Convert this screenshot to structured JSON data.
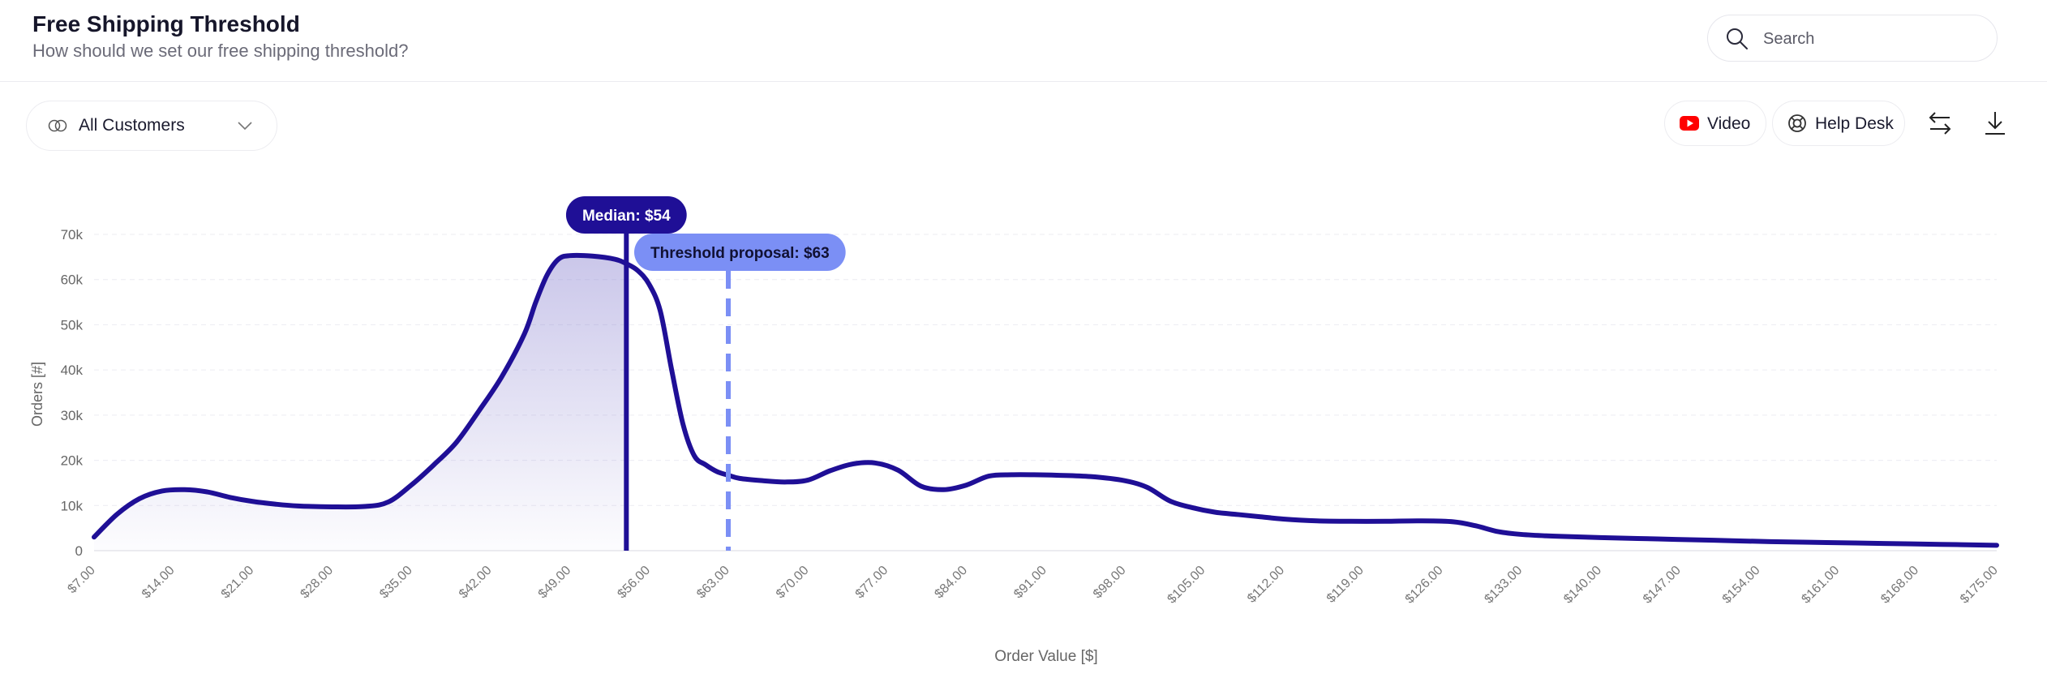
{
  "header": {
    "title": "Free Shipping Threshold",
    "subtitle": "How should we set our free shipping threshold?"
  },
  "search": {
    "placeholder": "Search",
    "icon": "search-icon"
  },
  "filter": {
    "selected": "All Customers",
    "icon": "segment-icon"
  },
  "toolbar": {
    "video_label": "Video",
    "helpdesk_label": "Help Desk",
    "swap_icon": "swap-arrows-icon",
    "download_icon": "download-icon"
  },
  "colors": {
    "line": "#1f0f96",
    "median": "#1f0f96",
    "threshold": "#7b8ff5",
    "fill": "#8a82d0",
    "youtube": "#ff0000"
  },
  "chart_data": {
    "type": "area",
    "xlabel": "Order Value [$]",
    "ylabel": "Orders [#]",
    "xlim": [
      7,
      175
    ],
    "ylim": [
      0,
      70000
    ],
    "yticks": [
      0,
      10000,
      20000,
      30000,
      40000,
      50000,
      60000,
      70000
    ],
    "ytick_labels": [
      "0",
      "10k",
      "20k",
      "30k",
      "40k",
      "50k",
      "60k",
      "70k"
    ],
    "xticks": [
      7,
      14,
      21,
      28,
      35,
      42,
      49,
      56,
      63,
      70,
      77,
      84,
      91,
      98,
      105,
      112,
      119,
      126,
      133,
      140,
      147,
      154,
      161,
      168,
      175
    ],
    "xtick_labels": [
      "$7.00",
      "$14.00",
      "$21.00",
      "$28.00",
      "$35.00",
      "$42.00",
      "$49.00",
      "$56.00",
      "$63.00",
      "$70.00",
      "$77.00",
      "$84.00",
      "$91.00",
      "$98.00",
      "$105.00",
      "$112.00",
      "$119.00",
      "$126.00",
      "$133.00",
      "$140.00",
      "$147.00",
      "$154.00",
      "$161.00",
      "$168.00",
      "$175.00"
    ],
    "grid": "horizontal-dashed",
    "x": [
      7,
      9,
      11,
      13,
      15,
      17,
      19,
      21,
      23,
      25,
      28,
      31,
      33,
      35,
      37,
      39,
      41,
      43,
      45,
      46,
      47,
      48,
      49,
      51,
      53,
      54,
      55,
      56,
      57,
      58,
      59,
      60,
      61,
      62,
      63,
      64,
      66,
      68,
      70,
      72,
      74,
      76,
      78,
      80,
      82,
      84,
      86,
      88,
      90,
      92,
      95,
      98,
      100,
      102,
      104,
      106,
      108,
      110,
      112,
      115,
      118,
      121,
      124,
      127,
      129,
      131,
      133,
      136,
      140,
      145,
      150,
      155,
      160,
      165,
      170,
      175
    ],
    "series": [
      {
        "values": [
          3000,
          8000,
          11500,
          13200,
          13500,
          13000,
          11800,
          10900,
          10300,
          9900,
          9700,
          9800,
          10800,
          14500,
          19000,
          24000,
          31000,
          38500,
          48000,
          55000,
          61000,
          64500,
          65300,
          65200,
          64500,
          63500,
          62000,
          59000,
          53000,
          40000,
          28000,
          21000,
          19000,
          17500,
          16700,
          16000,
          15500,
          15200,
          15600,
          17700,
          19200,
          19400,
          17800,
          14300,
          13500,
          14500,
          16500,
          16800,
          16800,
          16700,
          16400,
          15500,
          14000,
          11000,
          9500,
          8500,
          8000,
          7500,
          7000,
          6600,
          6500,
          6500,
          6600,
          6400,
          5500,
          4200,
          3600,
          3200,
          2900,
          2600,
          2300,
          2000,
          1800,
          1600,
          1400,
          1200
        ]
      }
    ],
    "annotations": [
      {
        "label": "Median: $54",
        "x": 54,
        "style": "solid"
      },
      {
        "label": "Threshold proposal: $63",
        "x": 63,
        "style": "dashed"
      }
    ]
  }
}
